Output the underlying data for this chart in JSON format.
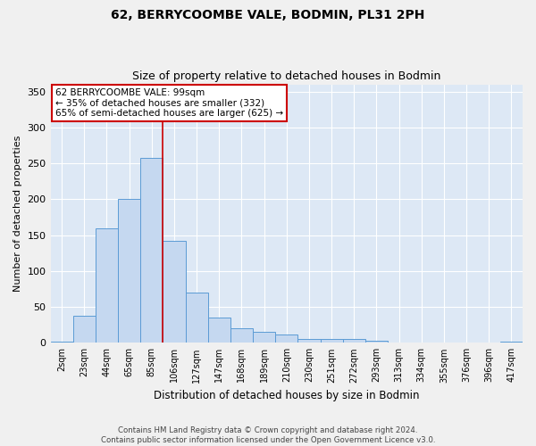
{
  "title1": "62, BERRYCOOMBE VALE, BODMIN, PL31 2PH",
  "title2": "Size of property relative to detached houses in Bodmin",
  "xlabel": "Distribution of detached houses by size in Bodmin",
  "ylabel": "Number of detached properties",
  "categories": [
    "2sqm",
    "23sqm",
    "44sqm",
    "65sqm",
    "85sqm",
    "106sqm",
    "127sqm",
    "147sqm",
    "168sqm",
    "189sqm",
    "210sqm",
    "230sqm",
    "251sqm",
    "272sqm",
    "293sqm",
    "313sqm",
    "334sqm",
    "355sqm",
    "376sqm",
    "396sqm",
    "417sqm"
  ],
  "values": [
    2,
    38,
    160,
    200,
    258,
    142,
    70,
    35,
    20,
    15,
    12,
    5,
    5,
    5,
    3,
    1,
    0,
    0,
    0,
    0,
    2
  ],
  "bar_color": "#c5d8f0",
  "bar_edge_color": "#5b9bd5",
  "vline_x": 4.5,
  "vline_color": "#cc0000",
  "ylim": [
    0,
    360
  ],
  "yticks": [
    0,
    50,
    100,
    150,
    200,
    250,
    300,
    350
  ],
  "annotation_title": "62 BERRYCOOMBE VALE: 99sqm",
  "annotation_line2": "← 35% of detached houses are smaller (332)",
  "annotation_line3": "65% of semi-detached houses are larger (625) →",
  "annotation_box_color": "#ffffff",
  "annotation_box_edge": "#cc0000",
  "footer1": "Contains HM Land Registry data © Crown copyright and database right 2024.",
  "footer2": "Contains public sector information licensed under the Open Government Licence v3.0.",
  "background_color": "#dde8f5",
  "fig_background_color": "#f0f0f0",
  "grid_color": "#ffffff"
}
